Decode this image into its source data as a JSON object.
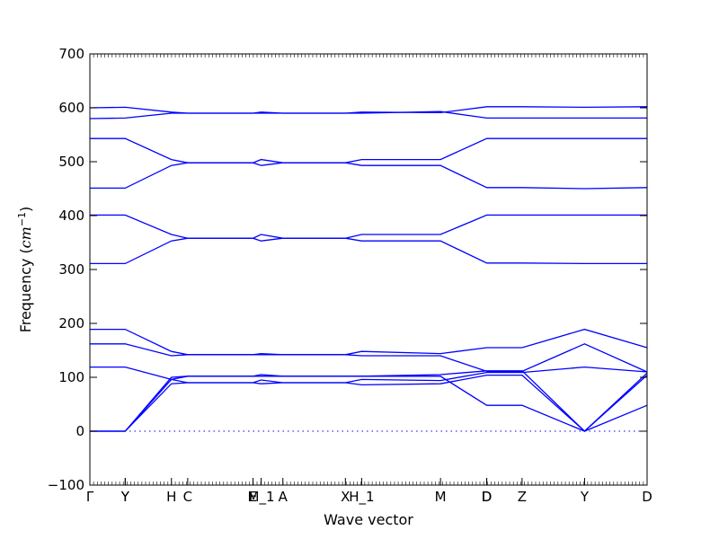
{
  "chart_data": {
    "type": "line",
    "title": "",
    "xlabel": "Wave vector",
    "ylabel": "Frequency",
    "ylabel_unit": "cm",
    "ylabel_unit_exp": "−1",
    "ylim": [
      -100,
      700
    ],
    "yticks": [
      -100,
      0,
      100,
      200,
      300,
      400,
      500,
      600,
      700
    ],
    "xlim": [
      0,
      20.5
    ],
    "high_symmetry_points": [
      {
        "label": "Γ",
        "x": 0
      },
      {
        "label": "Y",
        "x": 1.3
      },
      {
        "label": "Y",
        "x": 1.3
      },
      {
        "label": "H",
        "x": 3.0
      },
      {
        "label": "C",
        "x": 3.6
      },
      {
        "label": "E",
        "x": 6.0
      },
      {
        "label": "M_1",
        "x": 6.3
      },
      {
        "label": "A",
        "x": 7.1
      },
      {
        "label": "X",
        "x": 9.4
      },
      {
        "label": "H_1",
        "x": 10.0
      },
      {
        "label": "M",
        "x": 12.9
      },
      {
        "label": "D",
        "x": 14.6
      },
      {
        "label": "D",
        "x": 14.6
      },
      {
        "label": "Z",
        "x": 15.9
      },
      {
        "label": "Y",
        "x": 18.2
      },
      {
        "label": "D",
        "x": 20.5
      }
    ],
    "zero_line": 0,
    "grid": false,
    "legend": "none",
    "colors": {
      "bands": "#0000ff"
    },
    "series": [
      {
        "x": [
          0,
          1.3,
          3.0,
          3.6,
          6.0,
          6.3,
          7.1,
          9.4,
          10.0,
          12.9,
          14.6,
          15.9,
          18.2,
          20.5
        ],
        "values": [
          600,
          601,
          592,
          590,
          590,
          592,
          590,
          590,
          592,
          591,
          602,
          602,
          601,
          602
        ]
      },
      {
        "x": [
          0,
          1.3,
          3.0,
          3.6,
          6.0,
          6.3,
          7.1,
          9.4,
          10.0,
          12.9,
          14.6,
          15.9,
          18.2,
          20.5
        ],
        "values": [
          580,
          581,
          590,
          590,
          590,
          590,
          590,
          590,
          590,
          593,
          581,
          581,
          581,
          581
        ]
      },
      {
        "x": [
          0,
          1.3,
          3.0,
          3.6,
          6.0,
          6.3,
          7.1,
          9.4,
          10.0,
          12.9,
          14.6,
          15.9,
          18.2,
          20.5
        ],
        "values": [
          543,
          543,
          504,
          498,
          498,
          504,
          498,
          498,
          504,
          504,
          543,
          543,
          543,
          543
        ]
      },
      {
        "x": [
          0,
          1.3,
          3.0,
          3.6,
          6.0,
          6.3,
          7.1,
          9.4,
          10.0,
          12.9,
          14.6,
          15.9,
          18.2,
          20.5
        ],
        "values": [
          451,
          451,
          493,
          498,
          498,
          493,
          498,
          498,
          493,
          493,
          452,
          452,
          450,
          452
        ]
      },
      {
        "x": [
          0,
          1.3,
          3.0,
          3.6,
          6.0,
          6.3,
          7.1,
          9.4,
          10.0,
          12.9,
          14.6,
          15.9,
          18.2,
          20.5
        ],
        "values": [
          401,
          401,
          365,
          358,
          358,
          365,
          358,
          358,
          365,
          365,
          401,
          401,
          401,
          401
        ]
      },
      {
        "x": [
          0,
          1.3,
          3.0,
          3.6,
          6.0,
          6.3,
          7.1,
          9.4,
          10.0,
          12.9,
          14.6,
          15.9,
          18.2,
          20.5
        ],
        "values": [
          311,
          311,
          353,
          358,
          358,
          353,
          358,
          358,
          353,
          353,
          312,
          312,
          311,
          311
        ]
      },
      {
        "x": [
          0,
          1.3,
          3.0,
          3.6,
          6.0,
          6.3,
          7.1,
          9.4,
          10.0,
          12.9,
          14.6,
          15.9,
          18.2,
          20.5
        ],
        "values": [
          189,
          189,
          148,
          142,
          142,
          144,
          142,
          142,
          148,
          144,
          155,
          155,
          189,
          155
        ]
      },
      {
        "x": [
          0,
          1.3,
          3.0,
          3.6,
          6.0,
          6.3,
          7.1,
          9.4,
          10.0,
          12.9,
          14.6,
          15.9,
          18.2,
          20.5
        ],
        "values": [
          162,
          162,
          140,
          142,
          142,
          142,
          142,
          142,
          140,
          140,
          111,
          111,
          162,
          110
        ]
      },
      {
        "x": [
          0,
          1.3,
          3.0,
          3.6,
          6.0,
          6.3,
          7.1,
          9.4,
          10.0,
          12.9,
          14.6,
          15.9,
          18.2,
          20.5
        ],
        "values": [
          119,
          119,
          96,
          90,
          90,
          95,
          90,
          90,
          96,
          94,
          109,
          109,
          119,
          110
        ]
      },
      {
        "x": [
          0,
          1.3,
          3.0,
          3.6,
          6.0,
          6.3,
          7.1,
          9.4,
          10.0,
          12.9,
          14.6,
          15.9,
          18.2,
          20.5
        ],
        "values": [
          0,
          0,
          100,
          102,
          102,
          105,
          102,
          102,
          102,
          105,
          112,
          112,
          0,
          108
        ]
      },
      {
        "x": [
          0,
          1.3,
          3.0,
          3.6,
          6.0,
          6.3,
          7.1,
          9.4,
          10.0,
          12.9,
          14.6,
          15.9,
          18.2,
          20.5
        ],
        "values": [
          0,
          0,
          88,
          90,
          90,
          88,
          90,
          90,
          86,
          88,
          104,
          104,
          0,
          104
        ]
      },
      {
        "x": [
          0,
          1.3,
          3.0,
          3.6,
          6.0,
          6.3,
          7.1,
          9.4,
          10.0,
          12.9,
          14.6,
          15.9,
          18.2,
          20.5
        ],
        "values": [
          0,
          0,
          96,
          102,
          102,
          102,
          102,
          102,
          102,
          102,
          48,
          48,
          0,
          48
        ]
      }
    ]
  }
}
